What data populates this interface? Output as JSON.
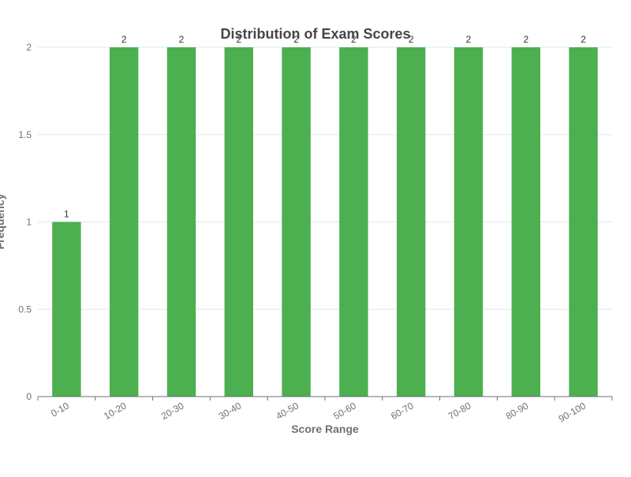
{
  "chart_data": {
    "type": "bar",
    "title": "Distribution of Exam Scores",
    "xlabel": "Score Range",
    "ylabel": "Frequency",
    "categories": [
      "0-10",
      "10-20",
      "20-30",
      "30-40",
      "40-50",
      "50-60",
      "60-70",
      "70-80",
      "80-90",
      "90-100"
    ],
    "values": [
      1,
      2,
      2,
      2,
      2,
      2,
      2,
      2,
      2,
      2
    ],
    "ylim": [
      0,
      2
    ],
    "yticks": [
      "0",
      "0.5",
      "1",
      "1.5",
      "2"
    ],
    "grid": true,
    "bar_color": "#4caf50",
    "data_labels": true,
    "legend": "none"
  }
}
